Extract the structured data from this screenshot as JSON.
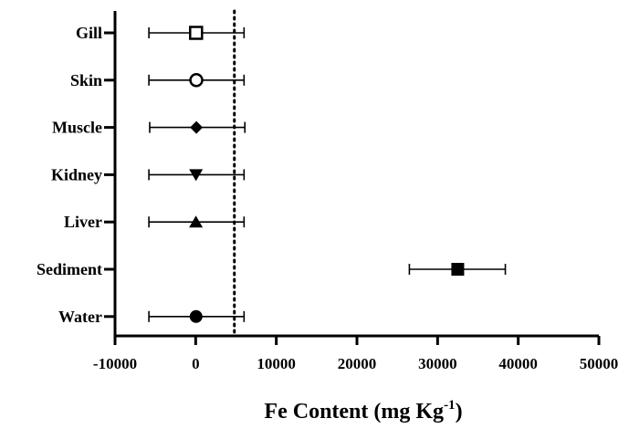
{
  "chart_data": {
    "type": "scatter",
    "orientation": "horizontal",
    "categories": [
      "Gill",
      "Skin",
      "Muscle",
      "Kidney",
      "Liver",
      "Sediment",
      "Water"
    ],
    "markers": [
      "open-square",
      "open-circle",
      "filled-diamond",
      "filled-triangle-down",
      "filled-triangle-up",
      "filled-square",
      "filled-circle"
    ],
    "values": [
      50,
      80,
      90,
      40,
      30,
      32500,
      50
    ],
    "error_low": [
      -5800,
      -5800,
      -5700,
      -5800,
      -5800,
      26500,
      -5800
    ],
    "error_high": [
      6000,
      6000,
      6100,
      6000,
      6000,
      38400,
      6000
    ],
    "reference_line": 4800,
    "xlim": [
      -10000,
      50000
    ],
    "xticks": [
      -10000,
      0,
      10000,
      20000,
      30000,
      40000,
      50000
    ],
    "xtick_labels": [
      "-10000",
      "0",
      "10000",
      "20000",
      "30000",
      "40000",
      "50000"
    ],
    "xlabel_main": "Fe Content (mg Kg",
    "xlabel_sup": "-1",
    "xlabel_end": ")",
    "grid": false,
    "legend": "none"
  }
}
